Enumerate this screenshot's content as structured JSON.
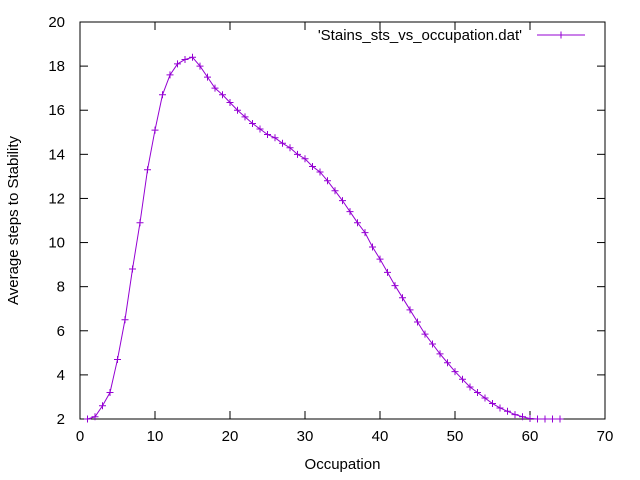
{
  "chart_data": {
    "type": "line",
    "title": "",
    "xlabel": "Occupation",
    "ylabel": "Average steps to Stability",
    "xlim": [
      0,
      70
    ],
    "ylim": [
      2,
      20
    ],
    "xticks": [
      0,
      10,
      20,
      30,
      40,
      50,
      60,
      70
    ],
    "yticks": [
      2,
      4,
      6,
      8,
      10,
      12,
      14,
      16,
      18,
      20
    ],
    "grid": false,
    "legend": {
      "placement": "top-right"
    },
    "series": [
      {
        "name": "'Stains_sts_vs_occupation.dat'",
        "color": "#9400d3",
        "marker": "plus",
        "x": [
          1,
          2,
          3,
          4,
          5,
          6,
          7,
          8,
          9,
          10,
          11,
          12,
          13,
          14,
          15,
          16,
          17,
          18,
          19,
          20,
          21,
          22,
          23,
          24,
          25,
          26,
          27,
          28,
          29,
          30,
          31,
          32,
          33,
          34,
          35,
          36,
          37,
          38,
          39,
          40,
          41,
          42,
          43,
          44,
          45,
          46,
          47,
          48,
          49,
          50,
          51,
          52,
          53,
          54,
          55,
          56,
          57,
          58,
          59,
          60,
          61,
          62,
          63,
          64
        ],
        "y": [
          2.0,
          2.1,
          2.6,
          3.2,
          4.7,
          6.5,
          8.8,
          10.9,
          13.3,
          15.1,
          16.7,
          17.6,
          18.1,
          18.3,
          18.4,
          18.0,
          17.5,
          17.0,
          16.7,
          16.35,
          16.0,
          15.7,
          15.4,
          15.15,
          14.9,
          14.75,
          14.5,
          14.3,
          14.0,
          13.8,
          13.45,
          13.2,
          12.8,
          12.35,
          11.9,
          11.4,
          10.9,
          10.45,
          9.8,
          9.25,
          8.65,
          8.05,
          7.5,
          6.95,
          6.4,
          5.85,
          5.4,
          4.95,
          4.55,
          4.15,
          3.8,
          3.45,
          3.2,
          2.95,
          2.7,
          2.5,
          2.35,
          2.2,
          2.1,
          2.02,
          2.0,
          2.0,
          2.0,
          2.0
        ]
      }
    ]
  }
}
